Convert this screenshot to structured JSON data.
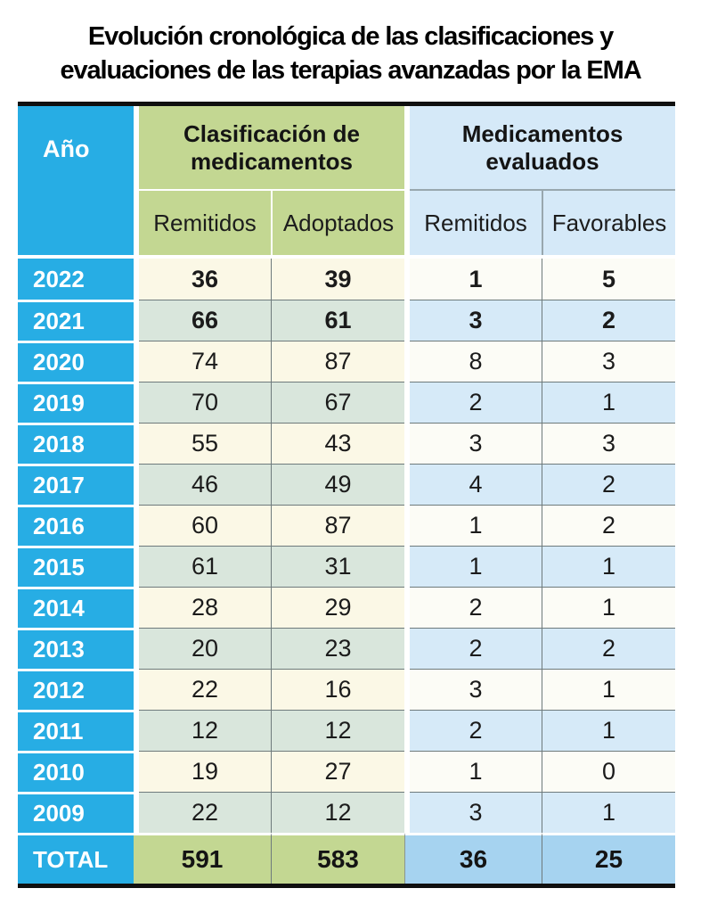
{
  "title": {
    "full": "Evolución cronológica de las clasificaciones y evaluaciones de las terapias avanzadas por la EMA",
    "lines": [
      "Evolución cronológica de las clasificaciones y",
      "evaluaciones de las terapias avanzadas por la EMA"
    ]
  },
  "colors": {
    "year_column_cyan": "#27ADE4",
    "classification_green": "#C3D792",
    "evaluated_light_blue": "#D5E9F8",
    "row_cream": "#FBF8E6",
    "row_pale_green": "#D9E6DC",
    "row_near_white": "#FCFCF6",
    "row_pale_blue": "#D6EAF8",
    "total_blue": "#A6D3F0",
    "separator_gray": "#6E7A7C",
    "border_black": "#101010"
  },
  "table": {
    "year_header": "Año",
    "groups": [
      {
        "label": "Clasificación de medicamentos",
        "subcolumns": [
          "Remitidos",
          "Adoptados"
        ]
      },
      {
        "label": "Medicamentos evaluados",
        "subcolumns": [
          "Remitidos",
          "Favorables"
        ]
      }
    ],
    "rows": [
      {
        "year": "2022",
        "values": [
          "36",
          "39",
          "1",
          "5"
        ],
        "bold": true
      },
      {
        "year": "2021",
        "values": [
          "66",
          "61",
          "3",
          "2"
        ],
        "bold": true
      },
      {
        "year": "2020",
        "values": [
          "74",
          "87",
          "8",
          "3"
        ],
        "bold": false
      },
      {
        "year": "2019",
        "values": [
          "70",
          "67",
          "2",
          "1"
        ],
        "bold": false
      },
      {
        "year": "2018",
        "values": [
          "55",
          "43",
          "3",
          "3"
        ],
        "bold": false
      },
      {
        "year": "2017",
        "values": [
          "46",
          "49",
          "4",
          "2"
        ],
        "bold": false
      },
      {
        "year": "2016",
        "values": [
          "60",
          "87",
          "1",
          "2"
        ],
        "bold": false
      },
      {
        "year": "2015",
        "values": [
          "61",
          "31",
          "1",
          "1"
        ],
        "bold": false
      },
      {
        "year": "2014",
        "values": [
          "28",
          "29",
          "2",
          "1"
        ],
        "bold": false
      },
      {
        "year": "2013",
        "values": [
          "20",
          "23",
          "2",
          "2"
        ],
        "bold": false
      },
      {
        "year": "2012",
        "values": [
          "22",
          "16",
          "3",
          "1"
        ],
        "bold": false
      },
      {
        "year": "2011",
        "values": [
          "12",
          "12",
          "2",
          "1"
        ],
        "bold": false
      },
      {
        "year": "2010",
        "values": [
          "19",
          "27",
          "1",
          "0"
        ],
        "bold": false
      },
      {
        "year": "2009",
        "values": [
          "22",
          "12",
          "3",
          "1"
        ],
        "bold": false
      }
    ],
    "total": {
      "label": "TOTAL",
      "values": [
        "591",
        "583",
        "36",
        "25"
      ]
    }
  },
  "chart_data": {
    "type": "table",
    "title": "Evolución cronológica de las clasificaciones y evaluaciones de las terapias avanzadas por la EMA",
    "columns": [
      "Año",
      "Clasificación de medicamentos – Remitidos",
      "Clasificación de medicamentos – Adoptados",
      "Medicamentos evaluados – Remitidos",
      "Medicamentos evaluados – Favorables"
    ],
    "rows": [
      [
        "2022",
        36,
        39,
        1,
        5
      ],
      [
        "2021",
        66,
        61,
        3,
        2
      ],
      [
        "2020",
        74,
        87,
        8,
        3
      ],
      [
        "2019",
        70,
        67,
        2,
        1
      ],
      [
        "2018",
        55,
        43,
        3,
        3
      ],
      [
        "2017",
        46,
        49,
        4,
        2
      ],
      [
        "2016",
        60,
        87,
        1,
        2
      ],
      [
        "2015",
        61,
        31,
        1,
        1
      ],
      [
        "2014",
        28,
        29,
        2,
        1
      ],
      [
        "2013",
        20,
        23,
        2,
        2
      ],
      [
        "2012",
        22,
        16,
        3,
        1
      ],
      [
        "2011",
        12,
        12,
        2,
        1
      ],
      [
        "2010",
        19,
        27,
        1,
        0
      ],
      [
        "2009",
        22,
        12,
        3,
        1
      ]
    ],
    "total_row": [
      "TOTAL",
      591,
      583,
      36,
      25
    ]
  }
}
